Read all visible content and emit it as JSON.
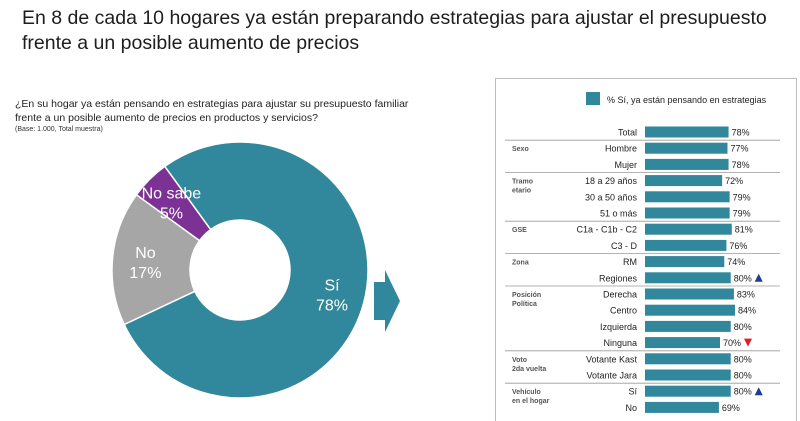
{
  "header": {
    "title": "En 8 de cada 10 hogares ya están preparando estrategias para ajustar el presupuesto frente a un posible aumento de precios",
    "question": "¿En su hogar ya están pensando en estrategias para ajustar su presupuesto familiar frente a un posible aumento de precios en productos y servicios?",
    "base": "(Base: 1.000, Total muestra)"
  },
  "colors": {
    "teal": "#31879b",
    "gray": "#a6a6a6",
    "purple": "#7b3294",
    "up_arrow": "#1f3a93",
    "down_arrow": "#e31b23"
  },
  "chart_data": [
    {
      "type": "pie",
      "style": "donut",
      "slices": [
        {
          "label": "Sí",
          "value": 78,
          "value_label": "78%",
          "color": "#31879b"
        },
        {
          "label": "No",
          "value": 17,
          "value_label": "17%",
          "color": "#a6a6a6"
        },
        {
          "label": "No sabe",
          "value": 5,
          "value_label": "5%",
          "color": "#7b3294"
        }
      ]
    },
    {
      "type": "bar",
      "orientation": "horizontal",
      "legend": "% Sí, ya están pensando en estrategias",
      "legend_position": "top",
      "groups": [
        {
          "name": "",
          "rows": [
            {
              "label": "Total",
              "value": 78,
              "value_label": "78%"
            }
          ]
        },
        {
          "name": "Sexo",
          "rows": [
            {
              "label": "Hombre",
              "value": 77,
              "value_label": "77%"
            },
            {
              "label": "Mujer",
              "value": 78,
              "value_label": "78%"
            }
          ]
        },
        {
          "name": "Tramo etario",
          "rows": [
            {
              "label": "18 a 29 años",
              "value": 72,
              "value_label": "72%"
            },
            {
              "label": "30 a 50 años",
              "value": 79,
              "value_label": "79%"
            },
            {
              "label": "51 o más",
              "value": 79,
              "value_label": "79%"
            }
          ]
        },
        {
          "name": "GSE",
          "rows": [
            {
              "label": "C1a - C1b - C2",
              "value": 81,
              "value_label": "81%"
            },
            {
              "label": "C3 - D",
              "value": 76,
              "value_label": "76%"
            }
          ]
        },
        {
          "name": "Zona",
          "rows": [
            {
              "label": "RM",
              "value": 74,
              "value_label": "74%"
            },
            {
              "label": "Regiones",
              "value": 80,
              "value_label": "80%",
              "marker": "up"
            }
          ]
        },
        {
          "name": "Posición Política",
          "rows": [
            {
              "label": "Derecha",
              "value": 83,
              "value_label": "83%"
            },
            {
              "label": "Centro",
              "value": 84,
              "value_label": "84%"
            },
            {
              "label": "Izquierda",
              "value": 80,
              "value_label": "80%"
            },
            {
              "label": "Ninguna",
              "value": 70,
              "value_label": "70%",
              "marker": "down"
            }
          ]
        },
        {
          "name": "Voto 2da vuelta",
          "rows": [
            {
              "label": "Votante Kast",
              "value": 80,
              "value_label": "80%"
            },
            {
              "label": "Votante Jara",
              "value": 80,
              "value_label": "80%"
            }
          ]
        },
        {
          "name": "Vehículo en el hogar",
          "rows": [
            {
              "label": "Sí",
              "value": 80,
              "value_label": "80%",
              "marker": "up"
            },
            {
              "label": "No",
              "value": 69,
              "value_label": "69%"
            }
          ]
        }
      ]
    }
  ]
}
